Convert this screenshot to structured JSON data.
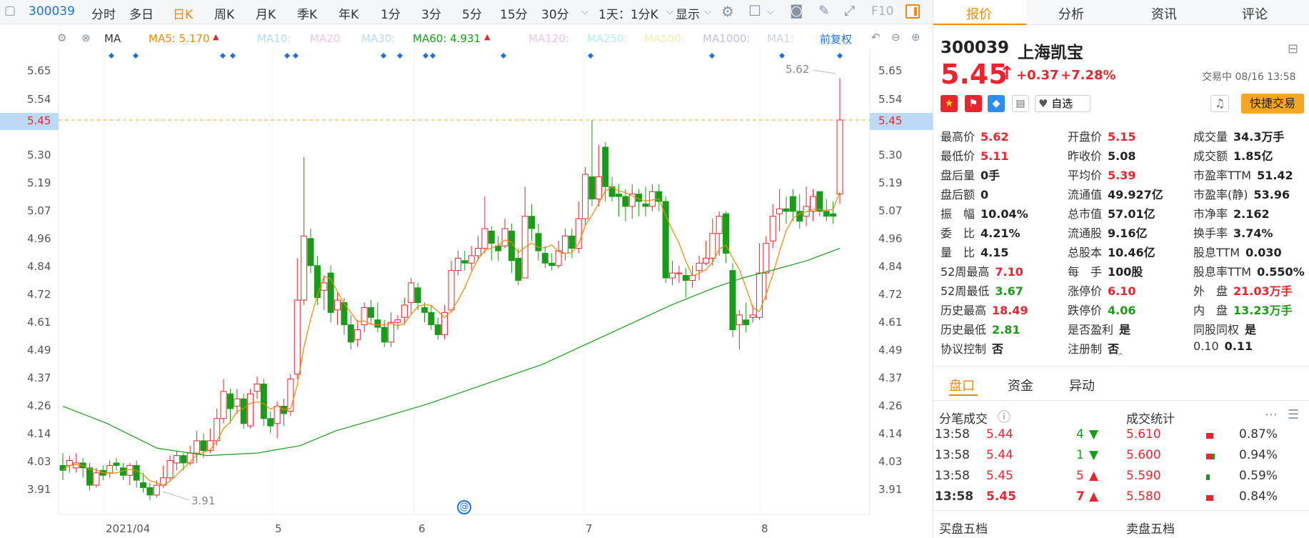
{
  "toolbar": {
    "code": "300039",
    "items": [
      "分时",
      "多日",
      "日K",
      "周K",
      "月K",
      "季K",
      "年K",
      "1分",
      "3分",
      "5分",
      "15分",
      "30分"
    ],
    "period": "1天：1分K",
    "display": "显示",
    "f10": "F10"
  },
  "indicator": {
    "name": "MA",
    "ma5": "MA5: 5.170",
    "ma10": "MA10:",
    "ma20": "MA20",
    "ma30": "MA30:",
    "ma60": "MA60: 4.931",
    "ma120": "MA120:",
    "ma250": "MA250:",
    "ma500": "MA500:",
    "ma1000": "MA1000:",
    "ma1": "MA1:",
    "adjust": "前复权"
  },
  "axis": {
    "y": [
      "5.65",
      "5.54",
      "5.45",
      "5.30",
      "5.19",
      "5.07",
      "4.96",
      "4.84",
      "4.72",
      "4.61",
      "4.49",
      "4.37",
      "4.26",
      "4.14",
      "4.03",
      "3.91"
    ],
    "x": [
      "2021/04",
      "5",
      "6",
      "7",
      "8"
    ],
    "current": "5.45",
    "high_note": "5.62",
    "low_note": "3.91"
  },
  "chart_data": {
    "type": "candlestick",
    "ylim": [
      3.85,
      5.7
    ],
    "period_start": "2021/04",
    "period_end": "2021/08/16",
    "high": 5.62,
    "low": 3.91,
    "last": 5.45
  },
  "quote": {
    "code": "300039",
    "name": "上海凯宝",
    "price": "5.45",
    "change": "+0.37",
    "pct": "+7.28%",
    "status": "交易中 08/16 13:58",
    "watch": "自选",
    "trade": "快捷交易"
  },
  "tabs": [
    "报价",
    "分析",
    "资讯",
    "评论"
  ],
  "stats": [
    [
      "最高价",
      "5.62",
      "red"
    ],
    [
      "开盘价",
      "5.15",
      "red"
    ],
    [
      "成交量",
      "34.3万手",
      "dark"
    ],
    [
      "最低价",
      "5.11",
      "red"
    ],
    [
      "昨收价",
      "5.08",
      "dark"
    ],
    [
      "成交额",
      "1.85亿",
      "dark"
    ],
    [
      "盘后量",
      "0手",
      "dark"
    ],
    [
      "平均价",
      "5.39",
      "red"
    ],
    [
      "市盈率TTM",
      "51.42",
      "dark"
    ],
    [
      "盘后额",
      "0",
      "dark"
    ],
    [
      "流通值",
      "49.927亿",
      "dark"
    ],
    [
      "市盈率(静)",
      "53.96",
      "dark"
    ],
    [
      "振　幅",
      "10.04%",
      "dark"
    ],
    [
      "总市值",
      "57.01亿",
      "dark"
    ],
    [
      "市净率",
      "2.162",
      "dark"
    ],
    [
      "委　比",
      "4.21%",
      "dark"
    ],
    [
      "流通股",
      "9.16亿",
      "dark"
    ],
    [
      "换手率",
      "3.74%",
      "dark"
    ],
    [
      "量　比",
      "4.15",
      "dark"
    ],
    [
      "总股本",
      "10.46亿",
      "dark"
    ],
    [
      "股息TTM",
      "0.030",
      "dark"
    ],
    [
      "52周最高",
      "7.10",
      "red"
    ],
    [
      "每　手",
      "100股",
      "dark"
    ],
    [
      "股息率TTM",
      "0.550%",
      "dark"
    ],
    [
      "52周最低",
      "3.67",
      "green"
    ],
    [
      "涨停价",
      "6.10",
      "red"
    ],
    [
      "外　盘",
      "21.03万手",
      "red"
    ],
    [
      "历史最高",
      "18.49",
      "red"
    ],
    [
      "跌停价",
      "4.06",
      "green"
    ],
    [
      "内　盘",
      "13.23万手",
      "green"
    ],
    [
      "历史最低",
      "2.81",
      "green"
    ],
    [
      "是否盈利",
      "是",
      "dark"
    ],
    [
      "同股同权",
      "是",
      "dark"
    ],
    [
      "协议控制",
      "否",
      "dark"
    ],
    [
      "注册制",
      "否",
      "dark"
    ],
    [
      "0.10",
      "0.11",
      "dark"
    ]
  ],
  "subtabs": [
    "盘口",
    "资金",
    "异动"
  ],
  "ticks_title": "分笔成交",
  "trade_title": "成交统计",
  "ticks": [
    [
      "13:58",
      "5.44",
      "4",
      "down"
    ],
    [
      "13:58",
      "5.44",
      "1",
      "down"
    ],
    [
      "13:58",
      "5.45",
      "5",
      "up"
    ],
    [
      "13:58",
      "5.45",
      "7",
      "up"
    ]
  ],
  "volstats": [
    [
      "5.610",
      "0.87%"
    ],
    [
      "5.600",
      "0.94%"
    ],
    [
      "5.590",
      "0.59%"
    ],
    [
      "5.580",
      "0.84%"
    ]
  ],
  "bottom": [
    "买盘五档",
    "卖盘五档"
  ]
}
